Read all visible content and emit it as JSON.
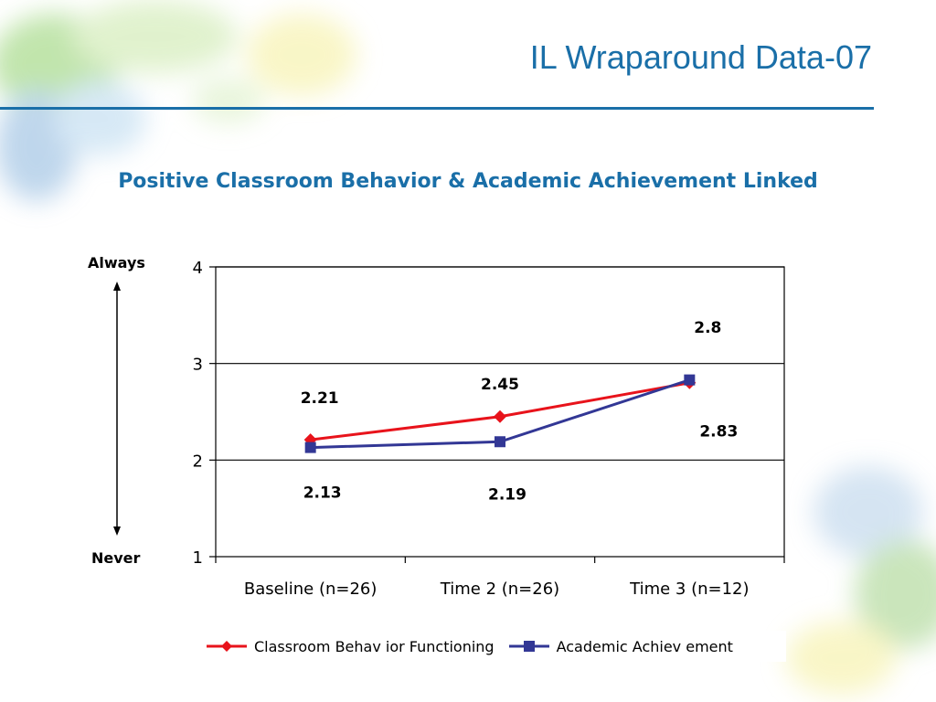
{
  "slide": {
    "title": "IL Wraparound Data-07",
    "subtitle": "Positive Classroom Behavior & Academic Achievement Linked"
  },
  "scale": {
    "top_label": "Always",
    "bottom_label": "Never"
  },
  "colors": {
    "title": "#1a6fa8",
    "classroom": "#e8131b",
    "academic": "#323795"
  },
  "chart_data": {
    "type": "line",
    "categories": [
      "Baseline (n=26)",
      "Time 2 (n=26)",
      "Time 3 (n=12)"
    ],
    "ylim": [
      1,
      4
    ],
    "yticks": [
      1,
      2,
      3,
      4
    ],
    "grid": true,
    "legend_position": "bottom",
    "series": [
      {
        "name": "Classroom Behav ior Functioning",
        "color": "#e8131b",
        "marker": "diamond",
        "values": [
          2.21,
          2.45,
          2.8
        ],
        "labels": [
          "2.21",
          "2.45",
          "2.8"
        ]
      },
      {
        "name": "Academic Achiev ement",
        "color": "#323795",
        "marker": "square",
        "values": [
          2.13,
          2.19,
          2.83
        ],
        "labels": [
          "2.13",
          "2.19",
          "2.83"
        ]
      }
    ]
  }
}
